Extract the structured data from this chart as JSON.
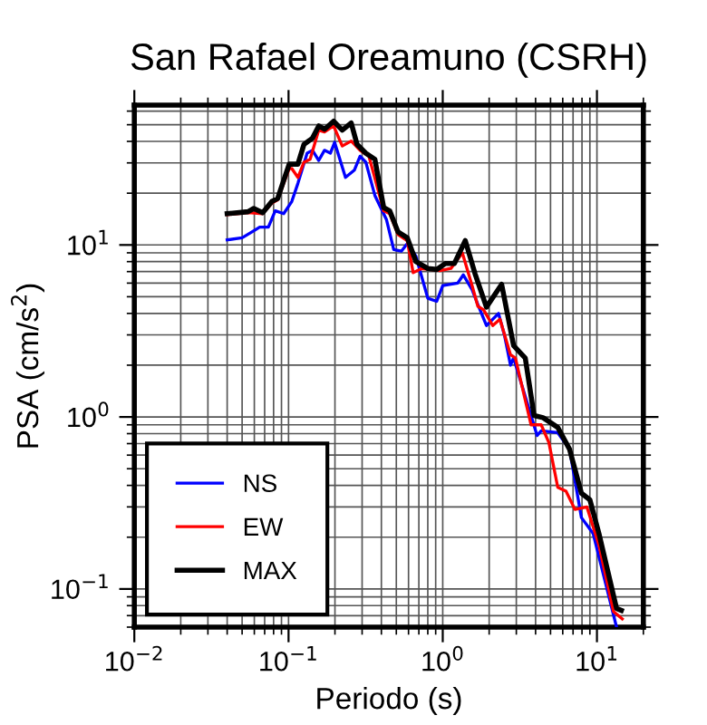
{
  "chart_data": {
    "type": "line",
    "title": "San Rafael Oreamuno (CSRH)",
    "xlabel": "Periodo (s)",
    "ylabel": "PSA (cm/s$^{2}$)",
    "log": "xy",
    "grid": true,
    "legend": "bottom left",
    "line_style": "solid",
    "marker": "none",
    "xlim": [
      0.01,
      20
    ],
    "ylim": [
      0.06,
      65
    ],
    "xticks": [
      {
        "value": 0.01,
        "label": "10$^{−2}$"
      },
      {
        "value": 0.1,
        "label": "10$^{−1}$"
      },
      {
        "value": 1,
        "label": "10$^{0}$"
      },
      {
        "value": 10,
        "label": "10$^{1}$"
      }
    ],
    "yticks": [
      {
        "value": 0.1,
        "label": "10$^{−1}$"
      },
      {
        "value": 1,
        "label": "10$^{0}$"
      },
      {
        "value": 10,
        "label": "10$^{1}$"
      }
    ],
    "series": [
      {
        "name": "NS",
        "color": "#0000ff",
        "x": [
          0.04,
          0.05,
          0.057,
          0.065,
          0.074,
          0.082,
          0.093,
          0.105,
          0.115,
          0.132,
          0.143,
          0.157,
          0.171,
          0.187,
          0.199,
          0.234,
          0.267,
          0.291,
          0.317,
          0.363,
          0.432,
          0.481,
          0.539,
          0.589,
          0.67,
          0.8,
          0.914,
          1.0,
          1.25,
          1.36,
          1.55,
          1.69,
          1.92,
          2.3,
          2.51,
          2.75,
          2.88,
          4.09,
          4.35,
          5.57,
          6.64,
          7.93,
          9.45,
          13.4
        ],
        "values": [
          10.7,
          11.0,
          11.8,
          12.7,
          12.7,
          15.8,
          15.2,
          17.9,
          22.8,
          34.2,
          35.5,
          31.0,
          35.5,
          34.2,
          39.5,
          24.7,
          27.2,
          32.8,
          30.3,
          19.4,
          14.0,
          9.4,
          9.2,
          10.2,
          8.6,
          4.9,
          4.7,
          5.8,
          6.0,
          6.7,
          5.5,
          4.5,
          3.4,
          4.0,
          3.0,
          2.0,
          2.2,
          0.78,
          0.83,
          0.81,
          0.65,
          0.26,
          0.21,
          0.06
        ]
      },
      {
        "name": "EW",
        "color": "#ff0000",
        "x": [
          0.04,
          0.055,
          0.068,
          0.078,
          0.085,
          0.101,
          0.105,
          0.115,
          0.126,
          0.138,
          0.157,
          0.171,
          0.196,
          0.223,
          0.255,
          0.291,
          0.332,
          0.414,
          0.453,
          0.513,
          0.589,
          0.643,
          0.73,
          0.96,
          1.13,
          1.34,
          1.55,
          1.69,
          1.84,
          2.11,
          2.35,
          2.75,
          2.96,
          3.74,
          4.35,
          4.88,
          5.57,
          6.3,
          7.2,
          8.6,
          10.3,
          12.8,
          14.6
        ],
        "values": [
          15.0,
          15.4,
          15.2,
          17.5,
          18.3,
          27.8,
          27.8,
          24.7,
          30.3,
          31.5,
          46.5,
          45.4,
          49.2,
          37.6,
          40.2,
          35.5,
          32.8,
          15.8,
          15.2,
          11.5,
          10.6,
          6.9,
          7.3,
          7.1,
          7.3,
          9.0,
          5.8,
          4.4,
          4.2,
          3.4,
          3.7,
          2.3,
          2.2,
          0.9,
          0.9,
          0.71,
          0.39,
          0.37,
          0.29,
          0.3,
          0.18,
          0.074,
          0.067
        ]
      },
      {
        "name": "MAX",
        "color": "#000000",
        "x": [
          0.04,
          0.0546,
          0.0595,
          0.068,
          0.078,
          0.085,
          0.093,
          0.101,
          0.115,
          0.126,
          0.143,
          0.157,
          0.171,
          0.196,
          0.223,
          0.255,
          0.278,
          0.317,
          0.363,
          0.414,
          0.453,
          0.513,
          0.589,
          0.67,
          0.8,
          0.914,
          1.04,
          1.19,
          1.4,
          1.62,
          1.92,
          2.41,
          2.88,
          3.43,
          3.91,
          4.47,
          5.57,
          6.64,
          7.93,
          9.0,
          10.3,
          13.4,
          14.4
        ],
        "values": [
          15.2,
          15.6,
          16.3,
          15.4,
          17.9,
          18.6,
          23.7,
          29.5,
          29.5,
          38.5,
          41.8,
          49.2,
          47.0,
          52.4,
          46.5,
          51.2,
          38.5,
          34.2,
          31.5,
          16.5,
          15.8,
          11.9,
          11.0,
          8.0,
          7.3,
          7.2,
          7.8,
          7.8,
          10.6,
          6.8,
          4.35,
          5.9,
          2.6,
          2.2,
          1.02,
          0.99,
          0.87,
          0.65,
          0.36,
          0.33,
          0.21,
          0.077,
          0.075
        ]
      }
    ]
  }
}
